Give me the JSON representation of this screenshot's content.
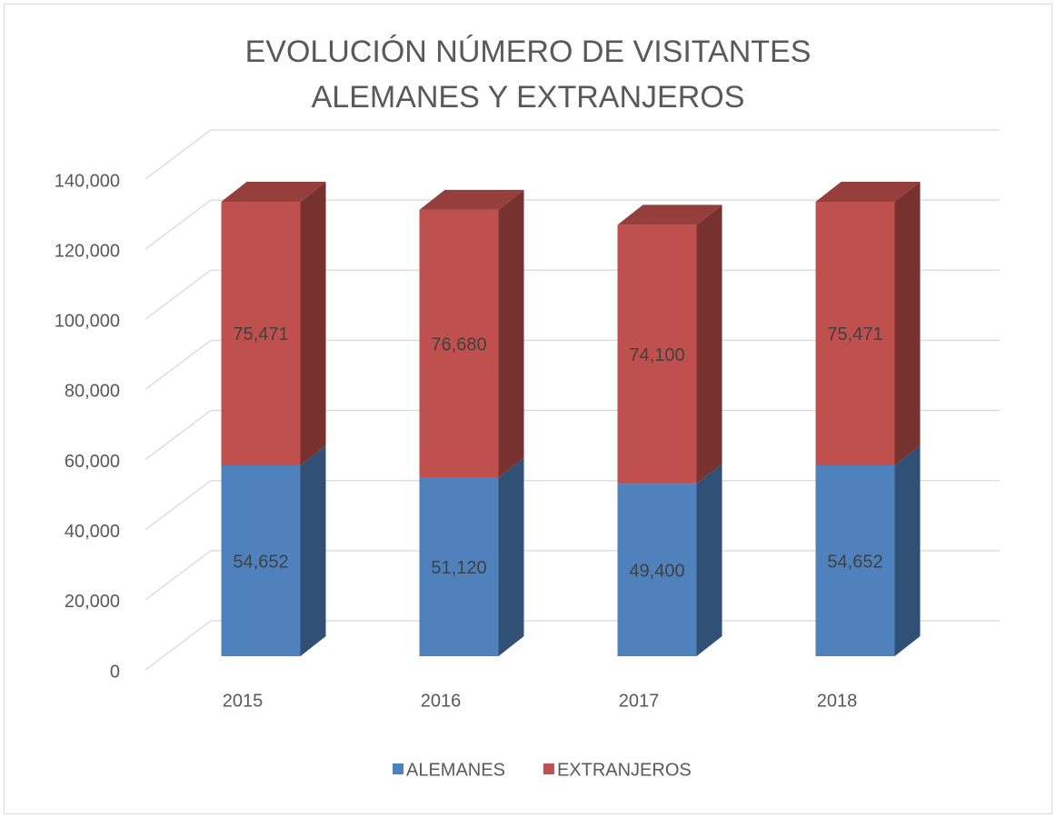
{
  "chart_data": {
    "type": "bar3d_stacked",
    "title": "EVOLUCIÓN NÚMERO DE VISITANTES ALEMANES Y EXTRANJEROS",
    "categories": [
      "2015",
      "2016",
      "2017",
      "2018"
    ],
    "series": [
      {
        "name": "ALEMANES",
        "color": "#4f81bd",
        "values": [
          54652,
          51120,
          49400,
          54652
        ],
        "value_labels": [
          "54,652",
          "51,120",
          "49,400",
          "54,652"
        ]
      },
      {
        "name": "EXTRANJEROS",
        "color": "#c0504d",
        "values": [
          75471,
          76680,
          74100,
          75471
        ],
        "value_labels": [
          "75,471",
          "76,680",
          "74,100",
          "75,471"
        ]
      }
    ],
    "ylim": [
      0,
      140000
    ],
    "yticks": [
      0,
      {
        "value": 20000,
        "label": "20,000"
      },
      {
        "value": 40000,
        "label": "40,000"
      },
      {
        "value": 60000,
        "label": "60,000"
      },
      {
        "value": 80000,
        "label": "80,000"
      },
      {
        "value": 100000,
        "label": "100,000"
      },
      {
        "value": 120000,
        "label": "120,000"
      },
      {
        "value": 140000,
        "label": "140,000"
      }
    ],
    "grid": true,
    "legend": "bottom"
  }
}
